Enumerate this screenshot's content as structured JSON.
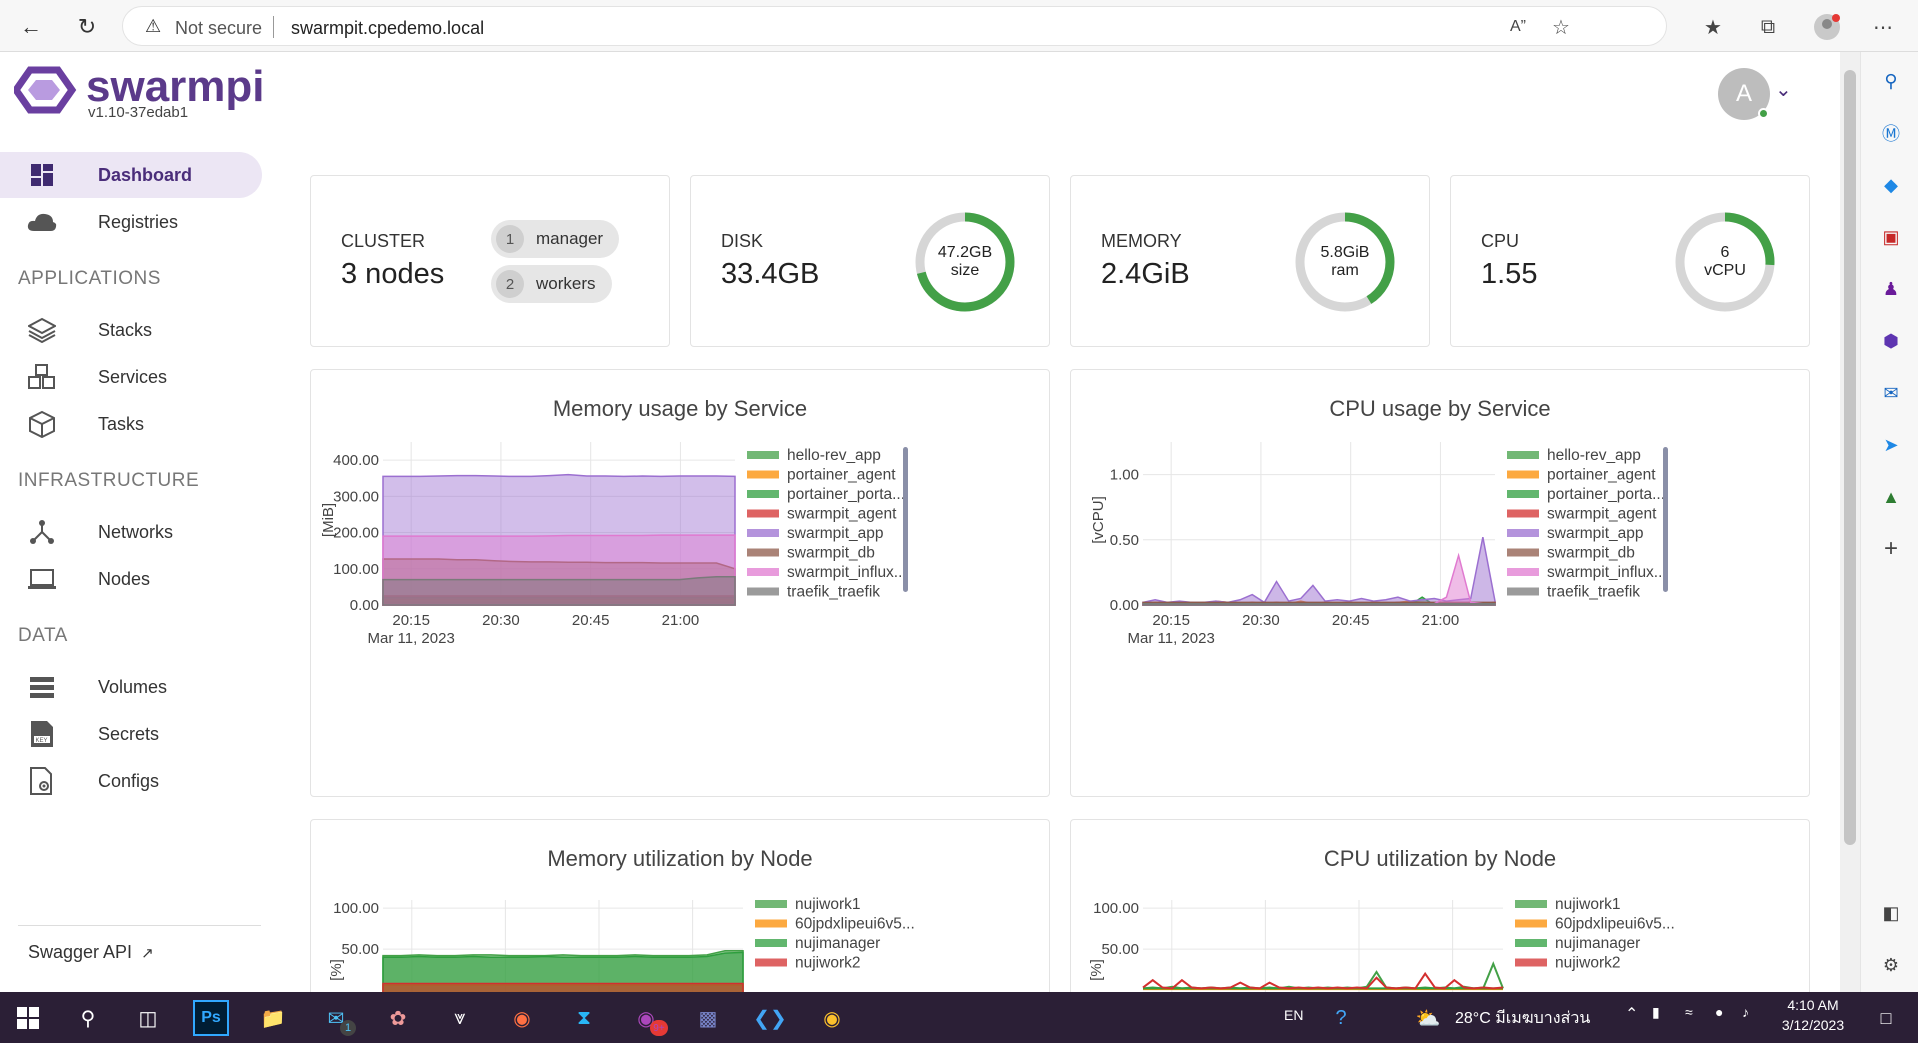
{
  "browser": {
    "security_label": "Not secure",
    "url": "swarmpit.cpedemo.local"
  },
  "app": {
    "logo_text": "swarmpit",
    "version": "v1.10-37edab1",
    "user_initial": "A"
  },
  "sidebar": {
    "items": [
      {
        "label": "Dashboard",
        "icon": "dashboard-icon"
      },
      {
        "label": "Registries",
        "icon": "cloud-icon"
      },
      {
        "label": "Stacks",
        "icon": "layers-icon"
      },
      {
        "label": "Services",
        "icon": "cubes-icon"
      },
      {
        "label": "Tasks",
        "icon": "cube-icon"
      },
      {
        "label": "Networks",
        "icon": "network-icon"
      },
      {
        "label": "Nodes",
        "icon": "laptop-icon"
      },
      {
        "label": "Volumes",
        "icon": "storage-icon"
      },
      {
        "label": "Secrets",
        "icon": "key-icon"
      },
      {
        "label": "Configs",
        "icon": "config-file-icon"
      }
    ],
    "sections": [
      "APPLICATIONS",
      "INFRASTRUCTURE",
      "DATA"
    ],
    "swagger_label": "Swagger API"
  },
  "stats": {
    "cluster": {
      "label": "CLUSTER",
      "value": "3 nodes",
      "managers": "1",
      "managers_label": "manager",
      "workers": "2",
      "workers_label": "workers"
    },
    "disk": {
      "label": "DISK",
      "value": "33.4GB",
      "gauge_top": "47.2GB",
      "gauge_bottom": "size",
      "fraction": 0.71
    },
    "memory": {
      "label": "MEMORY",
      "value": "2.4GiB",
      "gauge_top": "5.8GiB",
      "gauge_bottom": "ram",
      "fraction": 0.41
    },
    "cpu": {
      "label": "CPU",
      "value": "1.55",
      "gauge_top": "6",
      "gauge_bottom": "vCPU",
      "fraction": 0.26
    }
  },
  "colors": {
    "accent": "#4a2d7a",
    "gauge_fill": "#43a047",
    "gauge_track": "#d6d6d6"
  },
  "chart_data": [
    {
      "type": "area",
      "title": "Memory usage by Service",
      "ylabel": "[MiB]",
      "ylim": [
        0,
        450
      ],
      "yticks": [
        "0.00",
        "100.00",
        "200.00",
        "300.00",
        "400.00"
      ],
      "xticks": [
        "20:15",
        "20:30",
        "20:45",
        "21:00"
      ],
      "xsub": "Mar 11, 2023",
      "x": [
        "20:12",
        "20:15",
        "20:18",
        "20:21",
        "20:24",
        "20:27",
        "20:30",
        "20:33",
        "20:36",
        "20:39",
        "20:42",
        "20:45",
        "20:48",
        "20:51",
        "20:54",
        "20:57",
        "21:00",
        "21:03",
        "21:06",
        "21:09"
      ],
      "series": [
        {
          "name": "hello-rev_app",
          "color": "#43a047",
          "values": [
            8,
            8,
            8,
            8,
            8,
            8,
            8,
            8,
            8,
            8,
            8,
            8,
            8,
            8,
            8,
            8,
            8,
            8,
            8,
            8
          ]
        },
        {
          "name": "portainer_agent",
          "color": "#fb8c00",
          "values": [
            15,
            15,
            15,
            15,
            15,
            15,
            15,
            15,
            15,
            15,
            15,
            15,
            15,
            15,
            15,
            15,
            15,
            15,
            15,
            15
          ]
        },
        {
          "name": "portainer_porta...",
          "color": "#2e9e3e",
          "values": [
            20,
            20,
            20,
            20,
            20,
            20,
            20,
            20,
            20,
            20,
            20,
            20,
            20,
            20,
            20,
            20,
            20,
            20,
            20,
            20
          ]
        },
        {
          "name": "swarmpit_agent",
          "color": "#d32f2f",
          "values": [
            25,
            25,
            25,
            25,
            25,
            25,
            25,
            25,
            25,
            25,
            25,
            25,
            25,
            25,
            25,
            25,
            25,
            25,
            25,
            25
          ]
        },
        {
          "name": "swarmpit_app",
          "color": "#9b6fd0",
          "values": [
            355,
            355,
            355,
            356,
            357,
            357,
            356,
            355,
            355,
            357,
            360,
            356,
            356,
            355,
            356,
            355,
            356,
            356,
            356,
            355
          ]
        },
        {
          "name": "swarmpit_db",
          "color": "#8d5a4a",
          "values": [
            127,
            127,
            127,
            127,
            125,
            125,
            122,
            120,
            119,
            119,
            118,
            118,
            117,
            117,
            117,
            116,
            116,
            116,
            116,
            100
          ]
        },
        {
          "name": "swarmpit_influx...",
          "color": "#e07ad0",
          "values": [
            190,
            190,
            190,
            190,
            190,
            190,
            190,
            190,
            190,
            191,
            192,
            192,
            192,
            192,
            192,
            193,
            193,
            193,
            193,
            193
          ]
        },
        {
          "name": "traefik_traefik",
          "color": "#7a7a7a",
          "values": [
            70,
            70,
            70,
            70,
            70,
            70,
            70,
            70,
            70,
            70,
            70,
            70,
            70,
            70,
            70,
            70,
            70,
            75,
            78,
            78
          ]
        }
      ]
    },
    {
      "type": "area",
      "title": "CPU usage by Service",
      "ylabel": "[vCPU]",
      "ylim": [
        0,
        1.25
      ],
      "yticks": [
        "0.00",
        "0.50",
        "1.00"
      ],
      "xticks": [
        "20:15",
        "20:30",
        "20:45",
        "21:00"
      ],
      "xsub": "Mar 11, 2023",
      "x": [
        "20:12",
        "20:14",
        "20:16",
        "20:18",
        "20:20",
        "20:22",
        "20:24",
        "20:26",
        "20:28",
        "20:30",
        "20:32",
        "20:34",
        "20:36",
        "20:38",
        "20:40",
        "20:42",
        "20:44",
        "20:46",
        "20:48",
        "20:50",
        "20:52",
        "20:54",
        "20:56",
        "20:58",
        "21:00",
        "21:02",
        "21:04",
        "21:06",
        "21:08",
        "21:10"
      ],
      "series": [
        {
          "name": "hello-rev_app",
          "color": "#43a047",
          "values": [
            0.01,
            0.01,
            0.01,
            0.01,
            0.01,
            0.01,
            0.01,
            0.01,
            0.01,
            0.01,
            0.01,
            0.01,
            0.01,
            0.01,
            0.01,
            0.01,
            0.01,
            0.01,
            0.01,
            0.01,
            0.01,
            0.01,
            0.01,
            0.01,
            0.01,
            0.01,
            0.01,
            0.01,
            0.01,
            0.01
          ]
        },
        {
          "name": "portainer_agent",
          "color": "#fb8c00",
          "values": [
            0.01,
            0.02,
            0.02,
            0.01,
            0.02,
            0.01,
            0.03,
            0.02,
            0.01,
            0.02,
            0.01,
            0.02,
            0.01,
            0.03,
            0.01,
            0.02,
            0.01,
            0.02,
            0.01,
            0.02,
            0.01,
            0.02,
            0.03,
            0.02,
            0.01,
            0.02,
            0.01,
            0.02,
            0.01,
            0.02
          ]
        },
        {
          "name": "portainer_porta...",
          "color": "#2e9e3e",
          "values": [
            0,
            0,
            0,
            0,
            0,
            0,
            0,
            0,
            0,
            0,
            0,
            0,
            0,
            0,
            0,
            0,
            0,
            0,
            0,
            0,
            0,
            0,
            0,
            0.06,
            0,
            0,
            0,
            0,
            0,
            0
          ]
        },
        {
          "name": "swarmpit_agent",
          "color": "#d32f2f",
          "values": [
            0.01,
            0.02,
            0.01,
            0.02,
            0.01,
            0.02,
            0.01,
            0.02,
            0.01,
            0.02,
            0.01,
            0.02,
            0.01,
            0.02,
            0.01,
            0.02,
            0.01,
            0.02,
            0.01,
            0.02,
            0.01,
            0.02,
            0.01,
            0.02,
            0.01,
            0.02,
            0.01,
            0.02,
            0.01,
            0.02
          ]
        },
        {
          "name": "swarmpit_app",
          "color": "#9b6fd0",
          "values": [
            0.02,
            0.04,
            0.02,
            0.03,
            0.02,
            0.02,
            0.03,
            0.02,
            0.04,
            0.08,
            0.02,
            0.18,
            0.03,
            0.05,
            0.15,
            0.03,
            0.04,
            0.03,
            0.05,
            0.03,
            0.04,
            0.06,
            0.03,
            0.04,
            0.05,
            0.03,
            0.04,
            0.05,
            0.52,
            0.03
          ]
        },
        {
          "name": "swarmpit_db",
          "color": "#8d5a4a",
          "values": [
            0.02,
            0.02,
            0.02,
            0.02,
            0.02,
            0.02,
            0.02,
            0.02,
            0.02,
            0.02,
            0.02,
            0.02,
            0.02,
            0.02,
            0.02,
            0.02,
            0.02,
            0.02,
            0.02,
            0.02,
            0.02,
            0.02,
            0.02,
            0.02,
            0.02,
            0.02,
            0.02,
            0.02,
            0.02,
            0.02
          ]
        },
        {
          "name": "swarmpit_influx...",
          "color": "#e07ad0",
          "values": [
            0.01,
            0.01,
            0.01,
            0.01,
            0.01,
            0.01,
            0.01,
            0.01,
            0.01,
            0.01,
            0.01,
            0.01,
            0.01,
            0.01,
            0.01,
            0.01,
            0.01,
            0.01,
            0.01,
            0.01,
            0.01,
            0.01,
            0.01,
            0.01,
            0.01,
            0.06,
            0.38,
            0.02,
            0.01,
            0.01
          ]
        },
        {
          "name": "traefik_traefik",
          "color": "#7a7a7a",
          "values": [
            0.01,
            0.01,
            0.01,
            0.01,
            0.01,
            0.01,
            0.01,
            0.01,
            0.01,
            0.01,
            0.01,
            0.01,
            0.01,
            0.01,
            0.01,
            0.01,
            0.01,
            0.01,
            0.01,
            0.01,
            0.01,
            0.01,
            0.01,
            0.01,
            0.01,
            0.01,
            0.01,
            0.01,
            0.01,
            0.01
          ]
        }
      ]
    },
    {
      "type": "area",
      "title": "Memory utilization by Node",
      "ylabel": "[%]",
      "ylim": [
        0,
        110
      ],
      "yticks": [
        "50.00",
        "100.00"
      ],
      "series": [
        {
          "name": "nujiwork1",
          "color": "#43a047",
          "values": [
            42,
            42,
            43,
            42,
            42,
            43,
            43,
            42,
            42,
            42,
            43,
            42,
            42,
            42,
            43,
            42,
            42,
            42,
            43,
            48,
            48
          ]
        },
        {
          "name": "60jpdxlipeui6v5...",
          "color": "#fb8c00",
          "values": [
            6,
            6,
            6,
            6,
            6,
            6,
            6,
            6,
            6,
            6,
            6,
            6,
            6,
            6,
            6,
            6,
            6,
            6,
            6,
            6,
            6
          ]
        },
        {
          "name": "nujimanager",
          "color": "#2e9e3e",
          "values": [
            40,
            40,
            41,
            40,
            40,
            41,
            40,
            40,
            40,
            41,
            40,
            40,
            40,
            40,
            41,
            40,
            40,
            40,
            41,
            45,
            46
          ]
        },
        {
          "name": "nujiwork2",
          "color": "#d32f2f",
          "values": [
            8,
            8,
            8,
            8,
            8,
            8,
            8,
            8,
            8,
            8,
            8,
            8,
            8,
            8,
            8,
            8,
            8,
            8,
            8,
            8,
            8
          ]
        }
      ]
    },
    {
      "type": "line",
      "title": "CPU utilization by Node",
      "ylabel": "[%]",
      "ylim": [
        0,
        110
      ],
      "yticks": [
        "50.00",
        "100.00"
      ],
      "series": [
        {
          "name": "nujiwork1",
          "color": "#43a047",
          "values": [
            2,
            3,
            2,
            4,
            2,
            3,
            2,
            3,
            2,
            3,
            2,
            3,
            2,
            3,
            2,
            4,
            2,
            3,
            2,
            3,
            2,
            3,
            2,
            4,
            22,
            3,
            2,
            3,
            2,
            3,
            2,
            3,
            2,
            4,
            2,
            3,
            32,
            2
          ]
        },
        {
          "name": "60jpdxlipeui6v5...",
          "color": "#fb8c00",
          "values": [
            1,
            1,
            1,
            1,
            1,
            1,
            1,
            1,
            1,
            1,
            1,
            1,
            1,
            1,
            1,
            1,
            1,
            1,
            1,
            1,
            1,
            1,
            1,
            1,
            1,
            1,
            1,
            1,
            1,
            1,
            1,
            1,
            1,
            1,
            1,
            1,
            1,
            1
          ]
        },
        {
          "name": "nujimanager",
          "color": "#2e9e3e",
          "values": [
            2,
            2,
            2,
            2,
            2,
            2,
            2,
            2,
            2,
            2,
            2,
            2,
            2,
            2,
            2,
            2,
            2,
            2,
            2,
            2,
            2,
            2,
            2,
            2,
            2,
            2,
            2,
            2,
            2,
            2,
            2,
            2,
            2,
            2,
            2,
            2,
            2,
            2
          ]
        },
        {
          "name": "nujiwork2",
          "color": "#d32f2f",
          "values": [
            3,
            12,
            3,
            2,
            12,
            3,
            2,
            3,
            2,
            3,
            9,
            3,
            2,
            9,
            3,
            2,
            3,
            2,
            3,
            2,
            3,
            2,
            3,
            2,
            15,
            3,
            2,
            3,
            2,
            20,
            3,
            2,
            12,
            3,
            2,
            3,
            2,
            3
          ]
        }
      ]
    }
  ],
  "taskbar": {
    "language": "EN",
    "weather": "28°C มีเมฆบางส่วน",
    "time": "4:10 AM",
    "date": "3/12/2023",
    "mail_badge": "1",
    "messenger_badge": "9+"
  }
}
